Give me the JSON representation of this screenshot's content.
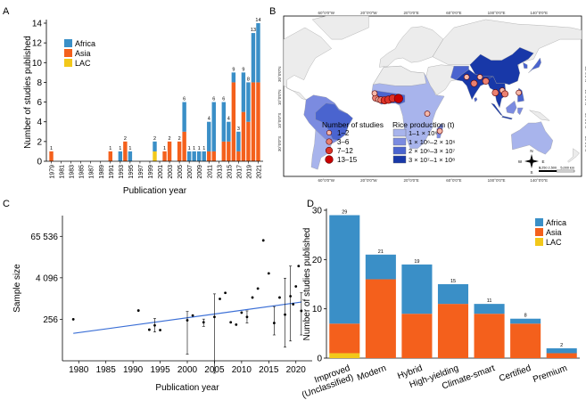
{
  "colors": {
    "africa": "#3a8fc7",
    "asia": "#f4601c",
    "lac": "#f2c81a",
    "trend": "#3b6fd6",
    "map_land": "#ececec",
    "map_ocean": "#ffffff",
    "rice_1": "#a8b4ec",
    "rice_2": "#7b8be0",
    "rice_3": "#4a64cf",
    "rice_4": "#1838a8"
  },
  "panels": {
    "a": "A",
    "b": "B",
    "c": "C",
    "d": "D"
  },
  "chart_data": [
    {
      "type": "bar",
      "stacked": true,
      "panel": "A",
      "xlabel": "Publication year",
      "ylabel": "Number of studies published",
      "ylim": [
        0,
        14
      ],
      "yticks": [
        "0",
        "2",
        "4",
        "6",
        "8",
        "10",
        "12",
        "14"
      ],
      "xtick_labels": [
        "1979",
        "1981",
        "1983",
        "1985",
        "1987",
        "1989",
        "1991",
        "1993",
        "1995",
        "1997",
        "1999",
        "2001",
        "2003",
        "2005",
        "2007",
        "2009",
        "2011",
        "2013",
        "2015",
        "2017",
        "2019",
        "2021"
      ],
      "legend": [
        "Africa",
        "Asia",
        "LAC"
      ],
      "legend_position": "top-left",
      "bars": [
        {
          "year": 1979,
          "label": "1",
          "africa": 0,
          "asia": 1,
          "lac": 0
        },
        {
          "year": 1991,
          "label": "1",
          "africa": 0,
          "asia": 1,
          "lac": 0
        },
        {
          "year": 1993,
          "label": "1",
          "africa": 1,
          "asia": 0,
          "lac": 0
        },
        {
          "year": 1994,
          "label": "2",
          "africa": 0,
          "asia": 2,
          "lac": 0
        },
        {
          "year": 1995,
          "label": "1",
          "africa": 1,
          "asia": 0,
          "lac": 0
        },
        {
          "year": 2000,
          "label": "2",
          "africa": 1,
          "asia": 0,
          "lac": 1
        },
        {
          "year": 2002,
          "label": "1",
          "africa": 0,
          "asia": 1,
          "lac": 0
        },
        {
          "year": 2003,
          "label": "2",
          "africa": 0,
          "asia": 2,
          "lac": 0
        },
        {
          "year": 2005,
          "label": "2",
          "africa": 0,
          "asia": 2,
          "lac": 0
        },
        {
          "year": 2006,
          "label": "6",
          "africa": 3,
          "asia": 3,
          "lac": 0
        },
        {
          "year": 2007,
          "label": "1",
          "africa": 1,
          "asia": 0,
          "lac": 0
        },
        {
          "year": 2008,
          "label": "1",
          "africa": 1,
          "asia": 0,
          "lac": 0
        },
        {
          "year": 2009,
          "label": "1",
          "africa": 1,
          "asia": 0,
          "lac": 0
        },
        {
          "year": 2010,
          "label": "1",
          "africa": 1,
          "asia": 0,
          "lac": 0
        },
        {
          "year": 2011,
          "label": "4",
          "africa": 3,
          "asia": 1,
          "lac": 0
        },
        {
          "year": 2012,
          "label": "6",
          "africa": 5,
          "asia": 1,
          "lac": 0
        },
        {
          "year": 2014,
          "label": "6",
          "africa": 4,
          "asia": 2,
          "lac": 0
        },
        {
          "year": 2015,
          "label": "4",
          "africa": 2,
          "asia": 2,
          "lac": 0
        },
        {
          "year": 2016,
          "label": "9",
          "africa": 1,
          "asia": 8,
          "lac": 0
        },
        {
          "year": 2017,
          "label": "3",
          "africa": 2,
          "asia": 1,
          "lac": 0
        },
        {
          "year": 2018,
          "label": "9",
          "africa": 4,
          "asia": 5,
          "lac": 0
        },
        {
          "year": 2019,
          "label": "8",
          "africa": 4,
          "asia": 4,
          "lac": 0
        },
        {
          "year": 2020,
          "label": "13",
          "africa": 5,
          "asia": 8,
          "lac": 0
        },
        {
          "year": 2021,
          "label": "14",
          "africa": 6,
          "asia": 8,
          "lac": 0
        }
      ]
    },
    {
      "type": "map",
      "panel": "B",
      "lon_labels": [
        "60°0'0\"W",
        "20°0'0\"W",
        "20°0'0\"E",
        "60°0'0\"E",
        "100°0'0\"E",
        "140°0'0\"E"
      ],
      "lat_labels": [
        "30°0'0\"N",
        "10°0'0\"N",
        "10°0'0\"S",
        "30°0'0\"S"
      ],
      "legend_studies_title": "Number of studies",
      "legend_studies": [
        "1–2",
        "3–6",
        "7–12",
        "13–15"
      ],
      "legend_rice_title": "Rice production (t)",
      "legend_rice": [
        "1–1 × 10⁶",
        "1 × 10⁶–2 × 10⁶",
        "2 × 10⁶–3 × 10⁷",
        "3 × 10⁷–1 × 10⁸"
      ],
      "scale_labels": [
        "0",
        "1,250 2,500",
        "5,000 km"
      ],
      "compass": [
        "N",
        "S",
        "W",
        "E"
      ],
      "study_points": [
        {
          "region": "West Africa",
          "lon": -13.5,
          "lat": 9.5,
          "size": 2
        },
        {
          "region": "West Africa",
          "lon": -11.0,
          "lat": 8.2,
          "size": 1
        },
        {
          "region": "West Africa",
          "lon": -8.5,
          "lat": 7.8,
          "size": 2
        },
        {
          "region": "West Africa",
          "lon": -5.0,
          "lat": 7.5,
          "size": 3
        },
        {
          "region": "West Africa",
          "lon": -1.5,
          "lat": 8.0,
          "size": 3
        },
        {
          "region": "West Africa",
          "lon": 2.5,
          "lat": 9.2,
          "size": 3
        },
        {
          "region": "West Africa",
          "lon": 8.0,
          "lat": 9.0,
          "size": 4
        },
        {
          "region": "West Africa",
          "lon": -14.5,
          "lat": 13.5,
          "size": 1
        },
        {
          "region": "East Africa",
          "lon": 35.0,
          "lat": -4.0,
          "size": 1
        },
        {
          "region": "Madagascar",
          "lon": 46.8,
          "lat": -19.0,
          "size": 1
        },
        {
          "region": "South Asia",
          "lon": 72.0,
          "lat": 27.5,
          "size": 1
        },
        {
          "region": "South Asia",
          "lon": 79.0,
          "lat": 22.0,
          "size": 2
        },
        {
          "region": "South Asia",
          "lon": 84.5,
          "lat": 27.5,
          "size": 1
        },
        {
          "region": "South Asia",
          "lon": 90.0,
          "lat": 24.0,
          "size": 2
        },
        {
          "region": "Southeast Asia",
          "lon": 99.0,
          "lat": 14.0,
          "size": 2
        },
        {
          "region": "Southeast Asia",
          "lon": 105.5,
          "lat": 16.0,
          "size": 1
        },
        {
          "region": "Southeast Asia",
          "lon": 108.0,
          "lat": 13.0,
          "size": 2
        },
        {
          "region": "Philippines",
          "lon": 121.0,
          "lat": 14.0,
          "size": 1
        }
      ]
    },
    {
      "type": "scatter",
      "panel": "C",
      "xlabel": "Publication year",
      "ylabel": "Sample size",
      "xlim": [
        1977,
        2023
      ],
      "y_scale": "log2",
      "y_log2_range": [
        4,
        18
      ],
      "xticks": [
        1980,
        1985,
        1990,
        1995,
        2000,
        2005,
        2010,
        2015,
        2020
      ],
      "yticks": [
        {
          "label": "256",
          "value": 256
        },
        {
          "label": "4 096",
          "value": 4096
        },
        {
          "label": "65 536",
          "value": 65536
        }
      ],
      "trend": {
        "x": [
          1979,
          2021
        ],
        "y": [
          100,
          810
        ]
      },
      "points": [
        {
          "x": 1979,
          "y": 256
        },
        {
          "x": 1991,
          "y": 460
        },
        {
          "x": 1993,
          "y": 128
        },
        {
          "x": 1994,
          "y": 170,
          "lo": 110,
          "hi": 270
        },
        {
          "x": 1995,
          "y": 125
        },
        {
          "x": 2000,
          "y": 240,
          "lo": 25,
          "hi": 430
        },
        {
          "x": 2001,
          "y": 330
        },
        {
          "x": 2003,
          "y": 210,
          "lo": 160,
          "hi": 260
        },
        {
          "x": 2005,
          "y": 300,
          "lo": 7,
          "hi": 1400
        },
        {
          "x": 2006,
          "y": 1000
        },
        {
          "x": 2007,
          "y": 1500
        },
        {
          "x": 2008,
          "y": 210
        },
        {
          "x": 2009,
          "y": 180
        },
        {
          "x": 2010,
          "y": 400
        },
        {
          "x": 2011,
          "y": 300,
          "lo": 200,
          "hi": 450
        },
        {
          "x": 2012,
          "y": 1100
        },
        {
          "x": 2013,
          "y": 2000
        },
        {
          "x": 2014,
          "y": 50000
        },
        {
          "x": 2015,
          "y": 5500
        },
        {
          "x": 2016,
          "y": 200,
          "lo": 90,
          "hi": 600
        },
        {
          "x": 2017,
          "y": 1100
        },
        {
          "x": 2018,
          "y": 350,
          "lo": 40,
          "hi": 4000
        },
        {
          "x": 2019,
          "y": 1200,
          "lo": 60,
          "hi": 9000
        },
        {
          "x": 2019.5,
          "y": 700
        },
        {
          "x": 2020,
          "y": 2300
        },
        {
          "x": 2020.5,
          "y": 9000
        },
        {
          "x": 2021,
          "y": 450,
          "lo": 90,
          "hi": 1500
        }
      ]
    },
    {
      "type": "bar",
      "stacked": true,
      "panel": "D",
      "ylabel": "Number of studies published",
      "ylim": [
        0,
        30
      ],
      "yticks": [
        "0",
        "10",
        "20",
        "30"
      ],
      "categories": [
        "Improved\n(Unclassified)",
        "Modern",
        "Hybrid",
        "High-yielding",
        "Climate-smart",
        "Certified",
        "Premium"
      ],
      "totals": [
        29,
        21,
        19,
        15,
        11,
        8,
        2
      ],
      "series": [
        {
          "name": "LAC",
          "values": [
            1,
            0,
            0,
            0,
            0,
            0,
            0
          ]
        },
        {
          "name": "Asia",
          "values": [
            6,
            16,
            9,
            11,
            9,
            7,
            1
          ]
        },
        {
          "name": "Africa",
          "values": [
            22,
            5,
            10,
            4,
            2,
            1,
            1
          ]
        }
      ],
      "legend": [
        "Africa",
        "Asia",
        "LAC"
      ],
      "legend_position": "top-right"
    }
  ]
}
